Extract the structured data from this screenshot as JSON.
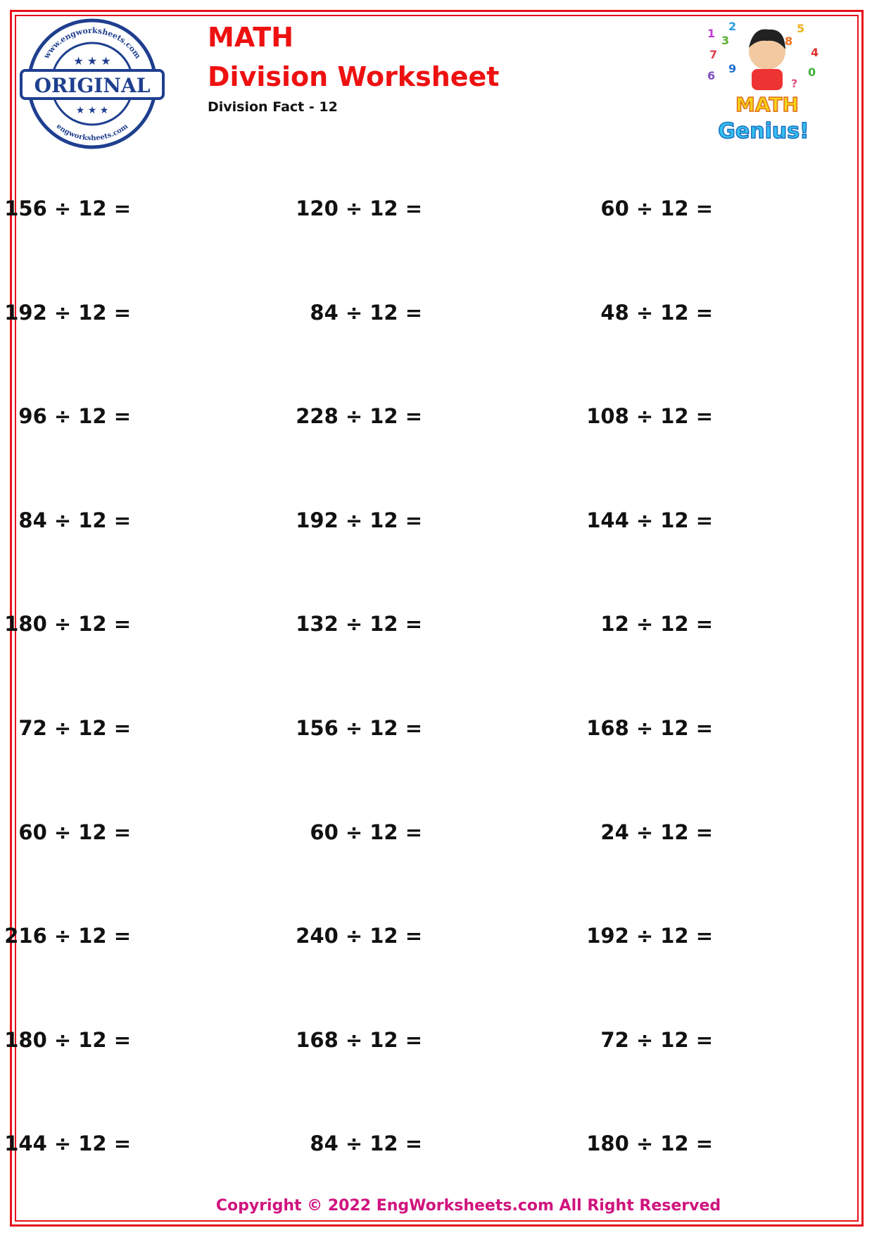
{
  "header": {
    "title_line1": "MATH",
    "title_line2": "Division Worksheet",
    "subtitle": "Division Fact - 12",
    "stamp_text": "ORIGINAL",
    "stamp_ring_text": "www.engworksheets.com",
    "logo_text": "MATH Genius!"
  },
  "colors": {
    "title": "#ee1111",
    "border": "#e8101a",
    "copyright": "#d0147e",
    "stamp": "#1f3f8f"
  },
  "problems": [
    [
      "156 ÷ 12 =",
      "120 ÷ 12 =",
      "60 ÷ 12 ="
    ],
    [
      "192 ÷ 12 =",
      "84 ÷ 12 =",
      "48 ÷ 12 ="
    ],
    [
      "96 ÷ 12 =",
      "228 ÷ 12 =",
      "108 ÷ 12 ="
    ],
    [
      "84 ÷ 12 =",
      "192 ÷ 12 =",
      "144 ÷ 12 ="
    ],
    [
      "180 ÷ 12 =",
      "132 ÷ 12 =",
      "12 ÷ 12 ="
    ],
    [
      "72 ÷ 12 =",
      "156 ÷ 12 =",
      "168 ÷ 12 ="
    ],
    [
      "60 ÷ 12 =",
      "60 ÷ 12 =",
      "24 ÷ 12 ="
    ],
    [
      "216 ÷ 12 =",
      "240 ÷ 12 =",
      "192 ÷ 12 ="
    ],
    [
      "180 ÷ 12 =",
      "168 ÷ 12 =",
      "72 ÷ 12 ="
    ],
    [
      "144 ÷ 12 =",
      "84 ÷ 12 =",
      "180 ÷ 12 ="
    ]
  ],
  "footer": {
    "copyright": "Copyright © 2022 EngWorksheets.com All Right Reserved"
  }
}
